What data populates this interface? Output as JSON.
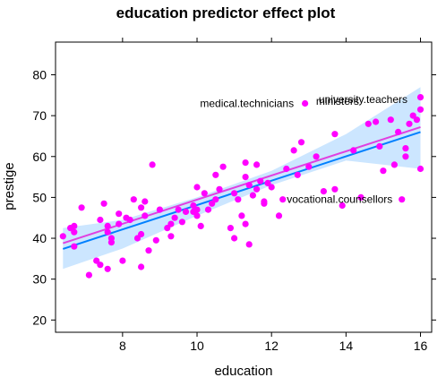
{
  "chart_data": {
    "type": "scatter",
    "title": "education predictor effect plot",
    "xlabel": "education",
    "ylabel": "prestige",
    "xlim": [
      6.2,
      16.3
    ],
    "ylim": [
      17,
      88
    ],
    "x_ticks": [
      8,
      10,
      12,
      14,
      16
    ],
    "y_ticks": [
      20,
      30,
      40,
      50,
      60,
      70,
      80
    ],
    "grid": false,
    "colors": {
      "points": "#ff00ff",
      "fit_line": "#0080ff",
      "smooth_line": "#e040e0",
      "confidence_band": "#cce6ff",
      "axis": "#000000"
    },
    "fit_line": {
      "x": [
        6.4,
        16.0
      ],
      "y": [
        37.4,
        66.0
      ]
    },
    "smooth_line": {
      "x": [
        6.4,
        16.0
      ],
      "y": [
        38.8,
        67.2
      ]
    },
    "confidence_band": {
      "x": [
        6.4,
        8.0,
        10.0,
        12.0,
        14.0,
        16.0
      ],
      "lower": [
        32.5,
        37.5,
        45.5,
        53.0,
        59.0,
        57.0
      ],
      "upper": [
        42.5,
        44.5,
        50.0,
        56.5,
        65.5,
        77.0
      ]
    },
    "points": [
      {
        "x": 6.4,
        "y": 40.5
      },
      {
        "x": 6.6,
        "y": 42.5
      },
      {
        "x": 6.7,
        "y": 41.5
      },
      {
        "x": 6.7,
        "y": 43.0
      },
      {
        "x": 6.7,
        "y": 38.0
      },
      {
        "x": 6.9,
        "y": 47.5
      },
      {
        "x": 7.1,
        "y": 31.0
      },
      {
        "x": 7.3,
        "y": 34.5
      },
      {
        "x": 7.4,
        "y": 44.5
      },
      {
        "x": 7.4,
        "y": 33.5
      },
      {
        "x": 7.5,
        "y": 48.5
      },
      {
        "x": 7.6,
        "y": 41.5
      },
      {
        "x": 7.6,
        "y": 32.5
      },
      {
        "x": 7.6,
        "y": 43.0
      },
      {
        "x": 7.7,
        "y": 40.0
      },
      {
        "x": 7.7,
        "y": 39.0
      },
      {
        "x": 7.9,
        "y": 43.5
      },
      {
        "x": 7.9,
        "y": 46.0
      },
      {
        "x": 8.0,
        "y": 34.5
      },
      {
        "x": 8.1,
        "y": 45.0
      },
      {
        "x": 8.2,
        "y": 44.5
      },
      {
        "x": 8.3,
        "y": 49.5
      },
      {
        "x": 8.4,
        "y": 40.0
      },
      {
        "x": 8.5,
        "y": 41.0
      },
      {
        "x": 8.5,
        "y": 47.5
      },
      {
        "x": 8.5,
        "y": 33.0
      },
      {
        "x": 8.6,
        "y": 45.5
      },
      {
        "x": 8.6,
        "y": 49.0
      },
      {
        "x": 8.7,
        "y": 37.0
      },
      {
        "x": 8.8,
        "y": 58.0
      },
      {
        "x": 8.9,
        "y": 39.5
      },
      {
        "x": 9.0,
        "y": 47.0
      },
      {
        "x": 9.2,
        "y": 42.5
      },
      {
        "x": 9.3,
        "y": 40.5
      },
      {
        "x": 9.3,
        "y": 43.5
      },
      {
        "x": 9.4,
        "y": 45.0
      },
      {
        "x": 9.5,
        "y": 47.0
      },
      {
        "x": 9.6,
        "y": 44.0
      },
      {
        "x": 9.7,
        "y": 46.5
      },
      {
        "x": 9.9,
        "y": 48.0
      },
      {
        "x": 9.9,
        "y": 46.5
      },
      {
        "x": 10.0,
        "y": 52.5
      },
      {
        "x": 10.0,
        "y": 45.5
      },
      {
        "x": 10.0,
        "y": 47.0
      },
      {
        "x": 10.1,
        "y": 43.0
      },
      {
        "x": 10.2,
        "y": 51.0
      },
      {
        "x": 10.3,
        "y": 47.0
      },
      {
        "x": 10.4,
        "y": 48.5
      },
      {
        "x": 10.5,
        "y": 55.5
      },
      {
        "x": 10.5,
        "y": 49.5
      },
      {
        "x": 10.6,
        "y": 52.0
      },
      {
        "x": 10.7,
        "y": 57.5
      },
      {
        "x": 10.9,
        "y": 42.5
      },
      {
        "x": 11.0,
        "y": 40.0
      },
      {
        "x": 11.0,
        "y": 51.0
      },
      {
        "x": 11.1,
        "y": 49.5
      },
      {
        "x": 11.2,
        "y": 45.5
      },
      {
        "x": 11.3,
        "y": 58.5
      },
      {
        "x": 11.3,
        "y": 55.0
      },
      {
        "x": 11.3,
        "y": 43.5
      },
      {
        "x": 11.4,
        "y": 38.5
      },
      {
        "x": 11.4,
        "y": 53.0
      },
      {
        "x": 11.5,
        "y": 50.5
      },
      {
        "x": 11.6,
        "y": 58.0
      },
      {
        "x": 11.6,
        "y": 52.0
      },
      {
        "x": 11.7,
        "y": 54.0
      },
      {
        "x": 11.8,
        "y": 49.0
      },
      {
        "x": 11.8,
        "y": 48.5
      },
      {
        "x": 11.9,
        "y": 53.5
      },
      {
        "x": 12.0,
        "y": 52.5
      },
      {
        "x": 12.2,
        "y": 45.5
      },
      {
        "x": 12.3,
        "y": 49.5
      },
      {
        "x": 12.4,
        "y": 57.0
      },
      {
        "x": 12.6,
        "y": 61.5
      },
      {
        "x": 12.7,
        "y": 55.5
      },
      {
        "x": 12.8,
        "y": 63.5
      },
      {
        "x": 12.9,
        "y": 73.0
      },
      {
        "x": 13.0,
        "y": 57.5
      },
      {
        "x": 13.2,
        "y": 60.0
      },
      {
        "x": 13.4,
        "y": 51.5
      },
      {
        "x": 13.7,
        "y": 65.5
      },
      {
        "x": 13.7,
        "y": 52.0
      },
      {
        "x": 13.9,
        "y": 48.0
      },
      {
        "x": 14.2,
        "y": 61.5
      },
      {
        "x": 14.4,
        "y": 50.0
      },
      {
        "x": 14.6,
        "y": 68.0
      },
      {
        "x": 14.8,
        "y": 68.5
      },
      {
        "x": 14.9,
        "y": 62.5
      },
      {
        "x": 15.0,
        "y": 56.5
      },
      {
        "x": 15.2,
        "y": 69.0
      },
      {
        "x": 15.3,
        "y": 58.0
      },
      {
        "x": 15.4,
        "y": 66.0
      },
      {
        "x": 15.5,
        "y": 49.5
      },
      {
        "x": 15.6,
        "y": 60.0
      },
      {
        "x": 15.6,
        "y": 62.0
      },
      {
        "x": 15.7,
        "y": 68.0
      },
      {
        "x": 15.8,
        "y": 70.0
      },
      {
        "x": 15.9,
        "y": 69.0
      },
      {
        "x": 16.0,
        "y": 74.5
      },
      {
        "x": 16.0,
        "y": 71.5
      },
      {
        "x": 16.0,
        "y": 57.0
      }
    ],
    "labels": [
      {
        "text": "university.teachers",
        "x": 15.65,
        "y": 74.0,
        "anchor": "end"
      },
      {
        "text": "ministers",
        "x": 14.35,
        "y": 73.5,
        "anchor": "end"
      },
      {
        "text": "medical.technicians",
        "x": 12.6,
        "y": 73.0,
        "anchor": "end"
      },
      {
        "text": "vocational.counsellors",
        "x": 15.25,
        "y": 49.5,
        "anchor": "end"
      }
    ]
  }
}
